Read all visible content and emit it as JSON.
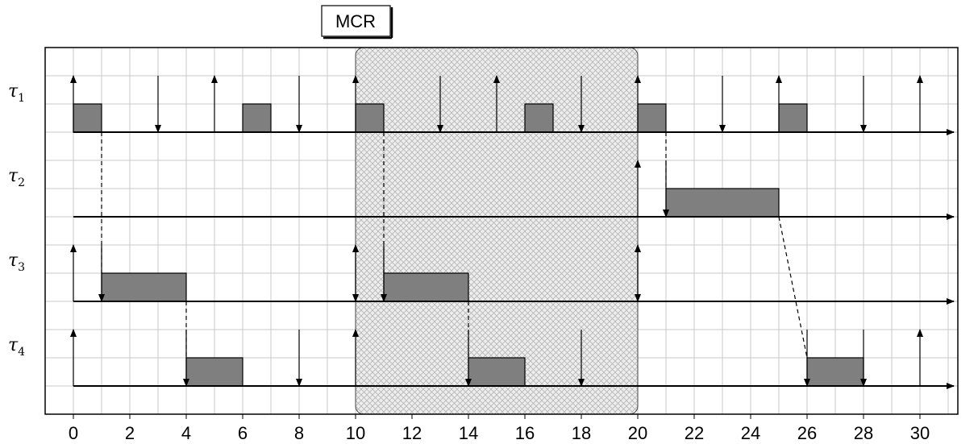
{
  "mcr_label": "MCR",
  "time_axis": {
    "ticks": [
      "0",
      "2",
      "4",
      "6",
      "8",
      "10",
      "12",
      "14",
      "16",
      "18",
      "20",
      "22",
      "24",
      "26",
      "28",
      "30"
    ],
    "min": 0,
    "max": 31,
    "grid": true
  },
  "mcr_window": {
    "start": 10,
    "end": 20
  },
  "tasks": [
    {
      "symbol": "τ",
      "sub": "1",
      "releases": [
        0,
        5,
        10,
        15,
        20,
        25,
        30
      ],
      "deadlines": [
        3,
        8,
        13,
        18,
        23,
        28
      ],
      "executions": [
        [
          0,
          1
        ],
        [
          6,
          7
        ],
        [
          10,
          11
        ],
        [
          16,
          17
        ],
        [
          20,
          21
        ],
        [
          25,
          26
        ]
      ]
    },
    {
      "symbol": "τ",
      "sub": "2",
      "releases": [
        20
      ],
      "deadlines": [
        21
      ],
      "executions": [
        [
          21,
          25
        ]
      ]
    },
    {
      "symbol": "τ",
      "sub": "3",
      "releases": [
        0,
        10,
        20
      ],
      "deadlines": [
        1,
        10,
        11,
        20
      ],
      "executions": [
        [
          1,
          4
        ],
        [
          11,
          14
        ]
      ]
    },
    {
      "symbol": "τ",
      "sub": "4",
      "releases": [
        0,
        10,
        30
      ],
      "deadlines": [
        4,
        8,
        14,
        18,
        26,
        28
      ],
      "executions": [
        [
          4,
          6
        ],
        [
          14,
          16
        ],
        [
          26,
          28
        ]
      ]
    }
  ],
  "dependencies": [
    {
      "from": [
        1,
        0
      ],
      "to": [
        1,
        2
      ]
    },
    {
      "from": [
        4,
        2
      ],
      "to": [
        4,
        3
      ]
    },
    {
      "from": [
        11,
        0
      ],
      "to": [
        11,
        2
      ]
    },
    {
      "from": [
        14,
        2
      ],
      "to": [
        14,
        3
      ]
    },
    {
      "from": [
        21,
        0
      ],
      "to": [
        21,
        1
      ]
    },
    {
      "from": [
        25,
        1
      ],
      "to": [
        26,
        3
      ]
    }
  ]
}
